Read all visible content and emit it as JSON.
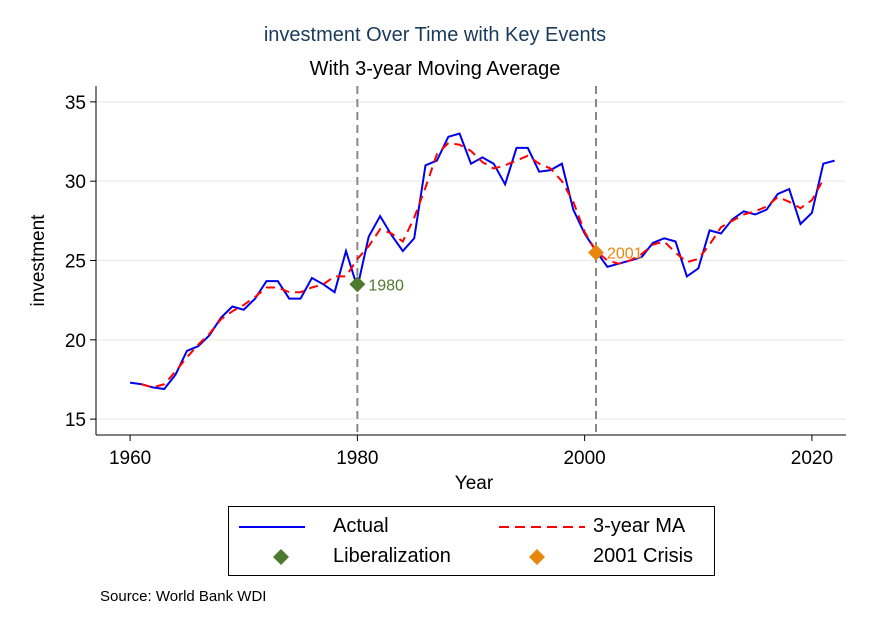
{
  "chart_data": {
    "type": "line",
    "title": "investment Over Time with Key Events",
    "subtitle": "With 3-year Moving Average",
    "xlabel": "Year",
    "ylabel": "investment",
    "xlim": [
      1957,
      2023
    ],
    "ylim": [
      14,
      36
    ],
    "xticks": [
      1960,
      1980,
      2000,
      2020
    ],
    "yticks": [
      15,
      20,
      25,
      30,
      35
    ],
    "grid": "horizontal",
    "legend_position": "bottom",
    "colors": {
      "actual": "#0000ee",
      "ma": "#ff0000",
      "liberalization": "#4e7a2e",
      "crisis": "#e8870e",
      "vline": "#888888"
    },
    "x": [
      1960,
      1961,
      1962,
      1963,
      1964,
      1965,
      1966,
      1967,
      1968,
      1969,
      1970,
      1971,
      1972,
      1973,
      1974,
      1975,
      1976,
      1977,
      1978,
      1979,
      1980,
      1981,
      1982,
      1983,
      1984,
      1985,
      1986,
      1987,
      1988,
      1989,
      1990,
      1991,
      1992,
      1993,
      1994,
      1995,
      1996,
      1997,
      1998,
      1999,
      2000,
      2001,
      2002,
      2003,
      2004,
      2005,
      2006,
      2007,
      2008,
      2009,
      2010,
      2011,
      2012,
      2013,
      2014,
      2015,
      2016,
      2017,
      2018,
      2019,
      2020,
      2021,
      2022
    ],
    "series": [
      {
        "name": "Actual",
        "values": [
          17.3,
          17.2,
          17.0,
          16.9,
          17.8,
          19.3,
          19.6,
          20.3,
          21.4,
          22.1,
          21.9,
          22.6,
          23.7,
          23.7,
          22.6,
          22.6,
          23.9,
          23.5,
          23.0,
          25.6,
          23.3,
          26.5,
          27.8,
          26.6,
          25.6,
          26.4,
          31.0,
          31.3,
          32.8,
          33.0,
          31.1,
          31.5,
          31.1,
          29.8,
          32.1,
          32.1,
          30.6,
          30.7,
          31.1,
          28.2,
          26.7,
          25.6,
          24.6,
          24.8,
          25.0,
          25.2,
          26.1,
          26.4,
          26.2,
          24.0,
          24.5,
          26.9,
          26.7,
          27.6,
          28.1,
          27.9,
          28.2,
          29.2,
          29.5,
          27.3,
          28.0,
          31.1,
          31.3
        ]
      },
      {
        "name": "3-year MA",
        "values": [
          null,
          17.2,
          17.0,
          17.2,
          18.0,
          18.9,
          19.7,
          20.4,
          21.3,
          21.8,
          22.2,
          22.7,
          23.3,
          23.3,
          23.0,
          23.0,
          23.3,
          23.5,
          24.0,
          24.0,
          25.1,
          25.9,
          26.97,
          26.7,
          26.2,
          27.7,
          29.6,
          31.7,
          32.4,
          32.3,
          31.9,
          31.2,
          30.8,
          31.0,
          31.3,
          31.6,
          31.1,
          30.8,
          30.0,
          28.7,
          26.8,
          25.6,
          25.0,
          24.8,
          25.0,
          25.4,
          26.0,
          26.2,
          25.5,
          24.9,
          25.1,
          26.0,
          27.1,
          27.5,
          27.9,
          28.1,
          28.4,
          29.0,
          28.7,
          28.3,
          28.8,
          30.1,
          null
        ]
      }
    ],
    "events": [
      {
        "name": "Liberalization",
        "year": 1980,
        "value": 23.5,
        "label": "1980"
      },
      {
        "name": "2001 Crisis",
        "year": 2001,
        "value": 25.5,
        "label": "2001"
      }
    ],
    "legend": [
      {
        "label": "Actual",
        "kind": "line",
        "color": "#0000ee"
      },
      {
        "label": "3-year MA",
        "kind": "dashed",
        "color": "#ff0000"
      },
      {
        "label": "Liberalization",
        "kind": "diamond",
        "color": "#4e7a2e"
      },
      {
        "label": "2001 Crisis",
        "kind": "diamond",
        "color": "#e8870e"
      }
    ],
    "source": "Source: World Bank WDI"
  }
}
